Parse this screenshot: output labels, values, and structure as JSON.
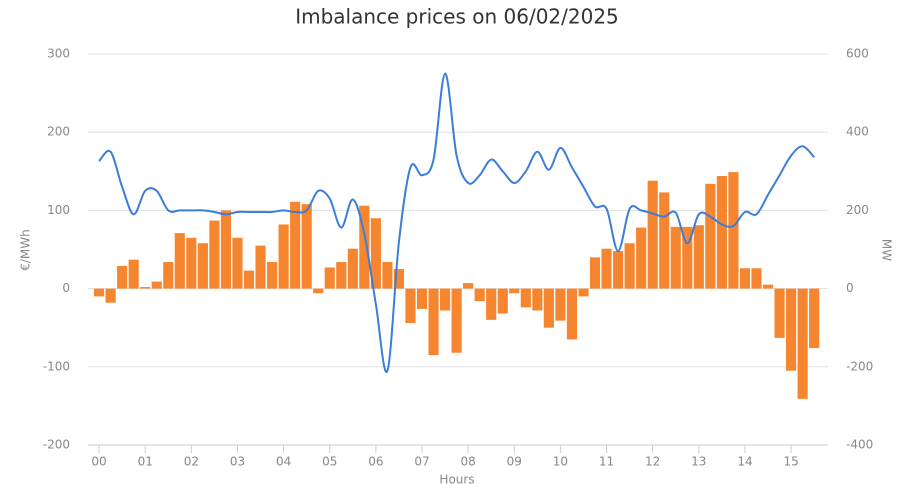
{
  "chart_data": {
    "type": "bar_line",
    "title": "Imbalance prices on 06/02/2025",
    "x_label": "Hours",
    "y_label": "€/MWh",
    "y2_label": "MW",
    "x": [
      0,
      0.25,
      0.5,
      0.75,
      1,
      1.25,
      1.5,
      1.75,
      2,
      2.25,
      2.5,
      2.75,
      3,
      3.25,
      3.5,
      3.75,
      4,
      4.25,
      4.5,
      4.75,
      5,
      5.25,
      5.5,
      5.75,
      6,
      6.25,
      6.5,
      6.75,
      7,
      7.25,
      7.5,
      7.75,
      8,
      8.25,
      8.5,
      8.75,
      9,
      9.25,
      9.5,
      9.75,
      10,
      10.25,
      10.5,
      10.75,
      11,
      11.25,
      11.5,
      11.75,
      12,
      12.25,
      12.5,
      12.75,
      13,
      13.25,
      13.5,
      13.75,
      14,
      14.25,
      14.5,
      14.75,
      15,
      15.25,
      15.5
    ],
    "series": [
      {
        "type": "bar",
        "axis": "y2",
        "color": "#f5862f",
        "values": [
          -20,
          -36,
          58,
          74,
          4,
          18,
          68,
          142,
          130,
          116,
          174,
          200,
          130,
          46,
          110,
          68,
          164,
          222,
          216,
          -12,
          54,
          68,
          102,
          212,
          180,
          68,
          50,
          -88,
          -52,
          -170,
          -56,
          -164,
          14,
          -32,
          -80,
          -64,
          -12,
          -48,
          -56,
          -100,
          -82,
          -130,
          -20,
          80,
          102,
          96,
          116,
          156,
          276,
          246,
          158,
          158,
          162,
          268,
          288,
          298,
          52,
          52,
          10,
          -126,
          -210,
          -282,
          -152
        ]
      },
      {
        "type": "line",
        "axis": "y",
        "color": "#3b7dd8",
        "values": [
          163,
          175,
          130,
          95,
          125,
          125,
          100,
          100,
          100,
          100,
          98,
          95,
          98,
          98,
          98,
          98,
          100,
          98,
          100,
          125,
          115,
          78,
          114,
          70,
          -20,
          -105,
          60,
          155,
          145,
          165,
          275,
          170,
          135,
          145,
          165,
          150,
          135,
          150,
          175,
          152,
          180,
          155,
          130,
          105,
          102,
          48,
          102,
          100,
          96,
          92,
          97,
          58,
          95,
          92,
          82,
          80,
          98,
          95,
          120,
          145,
          170,
          182,
          168
        ]
      }
    ],
    "xlim": [
      -0.24,
      15.8
    ],
    "xticks": [
      {
        "value": 0,
        "label": "00"
      },
      {
        "value": 1,
        "label": "01"
      },
      {
        "value": 2,
        "label": "02"
      },
      {
        "value": 3,
        "label": "03"
      },
      {
        "value": 4,
        "label": "04"
      },
      {
        "value": 5,
        "label": "05"
      },
      {
        "value": 6,
        "label": "06"
      },
      {
        "value": 7,
        "label": "07"
      },
      {
        "value": 8,
        "label": "08"
      },
      {
        "value": 9,
        "label": "09"
      },
      10,
      11,
      12,
      13,
      14,
      15
    ],
    "ylim": [
      -200,
      300
    ],
    "yticks": [
      -200,
      -100,
      0,
      100,
      200,
      300
    ],
    "y2lim": [
      -400,
      600
    ],
    "y2ticks": [
      -400,
      -200,
      0,
      200,
      400,
      600
    ],
    "grid": true
  }
}
